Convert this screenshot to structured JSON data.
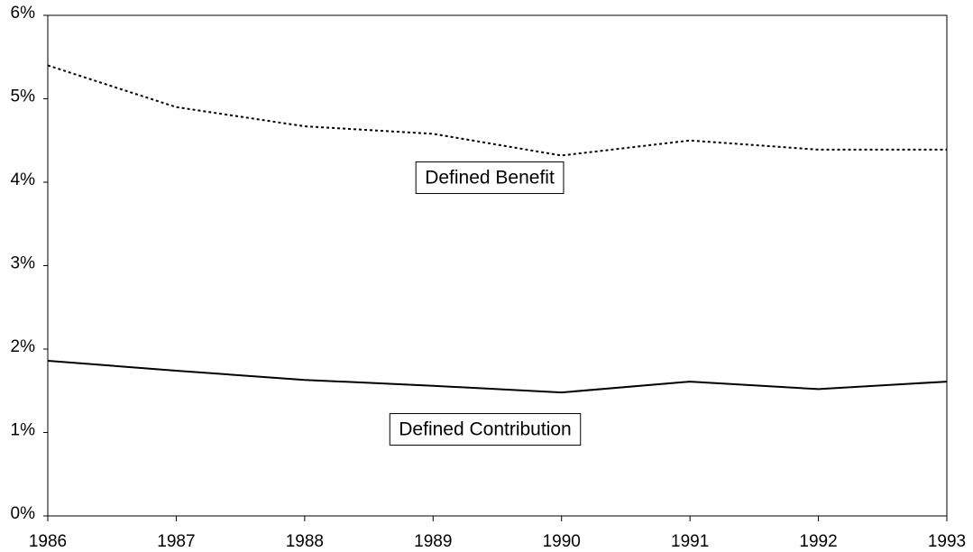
{
  "chart_data": {
    "type": "line",
    "x": [
      1986,
      1987,
      1988,
      1989,
      1990,
      1991,
      1992,
      1993
    ],
    "xlim": [
      1986,
      1993
    ],
    "xticks": [
      1986,
      1987,
      1988,
      1989,
      1990,
      1991,
      1992,
      1993
    ],
    "ylim": [
      0,
      6
    ],
    "yticks": [
      {
        "value": 0,
        "label": "0%"
      },
      {
        "value": 1,
        "label": "1%"
      },
      {
        "value": 2,
        "label": "2%"
      },
      {
        "value": 3,
        "label": "3%"
      },
      {
        "value": 4,
        "label": "4%"
      },
      {
        "value": 5,
        "label": "5%"
      },
      {
        "value": 6,
        "label": "6%"
      }
    ],
    "grid": false,
    "series": [
      {
        "name": "Defined Benefit",
        "color": "#000000",
        "dash": "dotted",
        "values": [
          5.4,
          4.9,
          4.67,
          4.58,
          4.32,
          4.5,
          4.39,
          4.39
        ]
      },
      {
        "name": "Defined Contribution",
        "color": "#000000",
        "dash": "solid",
        "values": [
          1.86,
          1.74,
          1.63,
          1.56,
          1.48,
          1.61,
          1.52,
          1.61
        ]
      }
    ]
  }
}
